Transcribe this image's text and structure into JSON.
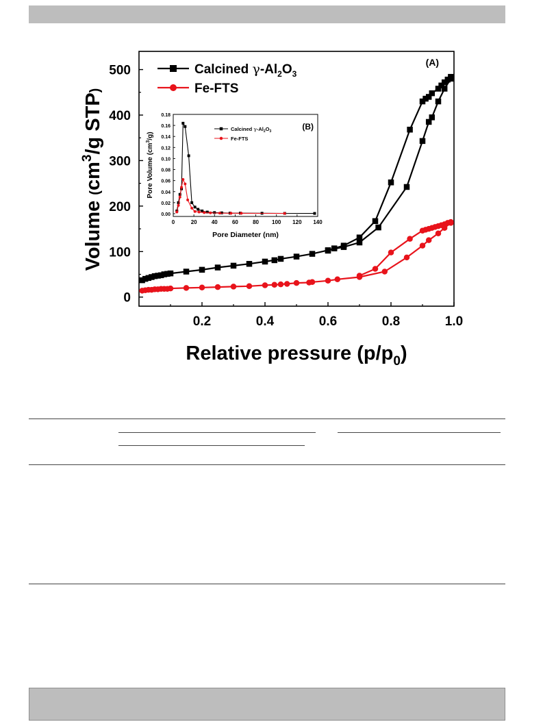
{
  "figure": {
    "chart_data": [
      {
        "type": "line",
        "panel_label": "(A)",
        "xlabel": "Relative pressure (p/p",
        "xlabel_sub": "0",
        "xlabel_end": ")",
        "ylabel": "Volume ",
        "ylabel_small": "(",
        "ylabel_main": "cm",
        "ylabel_sup": "3",
        "ylabel_rest": "/g STP",
        "ylabel_close": ")",
        "xlim": [
          0.0,
          1.0
        ],
        "ylim": [
          -20,
          540
        ],
        "x_ticks": [
          0.2,
          0.4,
          0.6,
          0.8,
          1.0
        ],
        "x_tick_labels": [
          "0.2",
          "0.4",
          "0.6",
          "0.8",
          "1.0"
        ],
        "y_ticks": [
          0,
          100,
          200,
          300,
          400,
          500
        ],
        "y_tick_labels": [
          "0",
          "100",
          "200",
          "300",
          "400",
          "500"
        ],
        "legend_position": "top-left",
        "series": [
          {
            "name": "Calcined γ-Al2O3",
            "legend_parts": [
              "Calcined ",
              "γ",
              "-Al",
              "2",
              "O",
              "3"
            ],
            "color": "#000000",
            "marker": "square",
            "adsorption": [
              [
                0.01,
                37
              ],
              [
                0.02,
                40
              ],
              [
                0.03,
                42
              ],
              [
                0.04,
                44
              ],
              [
                0.05,
                46
              ],
              [
                0.06,
                47
              ],
              [
                0.07,
                48
              ],
              [
                0.08,
                50
              ],
              [
                0.09,
                51
              ],
              [
                0.1,
                52
              ],
              [
                0.15,
                56
              ],
              [
                0.2,
                60
              ],
              [
                0.25,
                65
              ],
              [
                0.3,
                69
              ],
              [
                0.35,
                73
              ],
              [
                0.4,
                78
              ],
              [
                0.43,
                81
              ],
              [
                0.45,
                84
              ],
              [
                0.5,
                89
              ],
              [
                0.55,
                95
              ],
              [
                0.6,
                103
              ],
              [
                0.65,
                110
              ],
              [
                0.7,
                120
              ],
              [
                0.76,
                153
              ],
              [
                0.85,
                242
              ],
              [
                0.9,
                343
              ],
              [
                0.92,
                385
              ],
              [
                0.93,
                395
              ],
              [
                0.95,
                430
              ],
              [
                0.97,
                458
              ],
              [
                0.99,
                480
              ]
            ],
            "desorption": [
              [
                0.99,
                484
              ],
              [
                0.98,
                478
              ],
              [
                0.97,
                472
              ],
              [
                0.96,
                465
              ],
              [
                0.95,
                458
              ],
              [
                0.93,
                448
              ],
              [
                0.92,
                440
              ],
              [
                0.91,
                436
              ],
              [
                0.9,
                430
              ],
              [
                0.86,
                368
              ],
              [
                0.8,
                252
              ],
              [
                0.75,
                167
              ],
              [
                0.7,
                131
              ],
              [
                0.65,
                113
              ],
              [
                0.62,
                107
              ],
              [
                0.6,
                102
              ]
            ]
          },
          {
            "name": "Fe-FTS",
            "color": "#e8131b",
            "marker": "circle",
            "adsorption": [
              [
                0.01,
                14
              ],
              [
                0.02,
                15
              ],
              [
                0.03,
                16
              ],
              [
                0.04,
                16
              ],
              [
                0.05,
                17
              ],
              [
                0.06,
                17
              ],
              [
                0.07,
                18
              ],
              [
                0.08,
                18
              ],
              [
                0.09,
                18
              ],
              [
                0.1,
                19
              ],
              [
                0.15,
                20
              ],
              [
                0.2,
                21
              ],
              [
                0.25,
                22
              ],
              [
                0.3,
                23
              ],
              [
                0.35,
                24
              ],
              [
                0.4,
                26
              ],
              [
                0.43,
                27
              ],
              [
                0.45,
                28
              ],
              [
                0.47,
                29
              ],
              [
                0.5,
                31
              ],
              [
                0.54,
                32
              ],
              [
                0.55,
                33
              ],
              [
                0.6,
                36
              ],
              [
                0.63,
                39
              ],
              [
                0.7,
                44
              ],
              [
                0.78,
                56
              ],
              [
                0.85,
                87
              ],
              [
                0.9,
                113
              ],
              [
                0.92,
                125
              ],
              [
                0.95,
                140
              ],
              [
                0.97,
                152
              ],
              [
                0.99,
                163
              ]
            ],
            "desorption": [
              [
                0.99,
                165
              ],
              [
                0.98,
                163
              ],
              [
                0.97,
                160
              ],
              [
                0.96,
                158
              ],
              [
                0.95,
                156
              ],
              [
                0.94,
                154
              ],
              [
                0.93,
                152
              ],
              [
                0.92,
                150
              ],
              [
                0.91,
                148
              ],
              [
                0.9,
                146
              ],
              [
                0.86,
                128
              ],
              [
                0.8,
                98
              ],
              [
                0.75,
                62
              ],
              [
                0.7,
                47
              ]
            ]
          }
        ]
      },
      {
        "type": "line",
        "panel_label": "(B)",
        "xlabel": "Pore Diameter (nm)",
        "ylabel": "Pore Volume (cm",
        "ylabel_sup": "3",
        "ylabel_rest": "/g)",
        "xlim": [
          0,
          140
        ],
        "ylim": [
          -0.005,
          0.18
        ],
        "x_ticks": [
          0,
          20,
          40,
          60,
          80,
          100,
          120,
          140
        ],
        "x_tick_labels": [
          "0",
          "20",
          "40",
          "60",
          "80",
          "100",
          "120",
          "140"
        ],
        "y_ticks": [
          0.0,
          0.02,
          0.04,
          0.06,
          0.08,
          0.1,
          0.12,
          0.14,
          0.16,
          0.18
        ],
        "y_tick_labels": [
          "0.00",
          "0.02",
          "0.04",
          "0.06",
          "0.08",
          "0.10",
          "0.12",
          "0.14",
          "0.16",
          "0.18"
        ],
        "legend_position": "top-right",
        "series": [
          {
            "name": "Calcined γ-Al2O3",
            "legend_parts": [
              "Calcined ",
              "γ",
              "-Al",
              "2",
              "O",
              "3"
            ],
            "color": "#000000",
            "marker": "square",
            "points": [
              [
                3.5,
                0.005
              ],
              [
                5,
                0.02
              ],
              [
                6.5,
                0.035
              ],
              [
                8,
                0.045
              ],
              [
                9.5,
                0.164
              ],
              [
                11.5,
                0.158
              ],
              [
                15,
                0.105
              ],
              [
                18,
                0.02
              ],
              [
                21,
                0.012
              ],
              [
                24,
                0.008
              ],
              [
                28,
                0.005
              ],
              [
                33,
                0.003
              ],
              [
                40,
                0.002
              ],
              [
                47,
                0.0015
              ],
              [
                55,
                0.001
              ],
              [
                65,
                0.001
              ],
              [
                86,
                0.0008
              ],
              [
                108,
                0.0006
              ],
              [
                137,
                0.0005
              ]
            ]
          },
          {
            "name": "Fe-FTS",
            "color": "#e8131b",
            "marker": "circle",
            "points": [
              [
                3.5,
                0.003
              ],
              [
                5,
                0.015
              ],
              [
                6.5,
                0.03
              ],
              [
                8,
                0.048
              ],
              [
                9.5,
                0.062
              ],
              [
                11.5,
                0.054
              ],
              [
                14,
                0.025
              ],
              [
                18,
                0.01
              ],
              [
                21,
                0.004
              ],
              [
                25,
                0.003
              ],
              [
                30,
                0.002
              ],
              [
                36,
                0.0015
              ],
              [
                45,
                0.001
              ],
              [
                56,
                0.0008
              ],
              [
                66,
                0.0007
              ],
              [
                108,
                0.0005
              ]
            ]
          }
        ]
      }
    ]
  }
}
